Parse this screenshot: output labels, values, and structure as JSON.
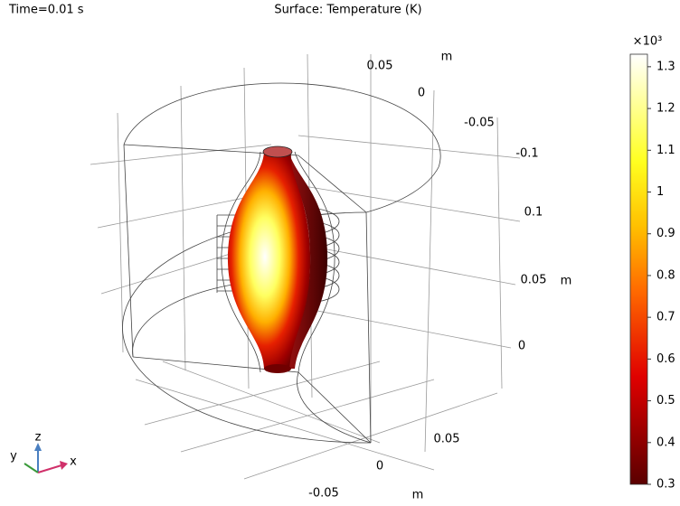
{
  "header": {
    "time_label": "Time=0.01 s",
    "title": "Surface: Temperature (K)"
  },
  "axes": {
    "y_axis": {
      "unit": "m",
      "ticks": [
        0.05,
        0,
        -0.05,
        -0.1
      ]
    },
    "z_axis": {
      "unit": "m",
      "ticks": [
        0.1,
        0.05,
        0
      ]
    },
    "x_axis": {
      "unit": "m",
      "ticks": [
        0.05,
        0,
        -0.05
      ]
    }
  },
  "colorbar": {
    "multiplier_label": "×10³",
    "lim": [
      0.3,
      1.33
    ],
    "ticks": [
      0.3,
      0.4,
      0.5,
      0.6,
      0.7,
      0.8,
      0.9,
      1,
      1.1,
      1.2,
      1.3
    ]
  },
  "triad": {
    "x": "x",
    "y": "y",
    "z": "z"
  }
}
